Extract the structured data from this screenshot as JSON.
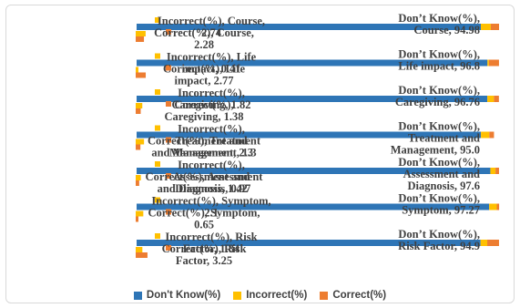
{
  "chart_data": {
    "type": "bar",
    "orientation": "horizontal",
    "stacked": true,
    "categories": [
      "Risk Factor",
      "Symptom",
      "Assessment and Diagnosis",
      "Treatment and Management",
      "Caregiving",
      "Life impact",
      "Course"
    ],
    "series": [
      {
        "name": "Don't Know(%)",
        "color": "#2e75b6",
        "values": [
          94.9,
          97.27,
          97.6,
          95.0,
          96.76,
          96.8,
          94.98
        ]
      },
      {
        "name": "Incorrect(%)",
        "color": "#ffc000",
        "values": [
          1.84,
          2.1,
          1.42,
          2.3,
          1.82,
          0.41,
          2.74
        ]
      },
      {
        "name": "Correct(%)",
        "color": "#ed7d31",
        "values": [
          3.25,
          0.65,
          0.97,
          1.3,
          1.38,
          2.77,
          2.28
        ]
      }
    ],
    "data_labels": [
      {
        "category": "Risk Factor",
        "dont_know": "Don’t Know(%), Risk Factor, 94.9",
        "incorrect": "Incorrect(%), Risk Factor, 1.84",
        "correct": "Correct(%), Risk Factor, 3.25"
      },
      {
        "category": "Symptom",
        "dont_know": "Don’t Know(%), Symptom, 97.27",
        "incorrect": "Incorrect(%), Symptom, 2.1",
        "correct": "Correct(%), Symptom, 0.65"
      },
      {
        "category": "Assessment and Diagnosis",
        "dont_know": "Don’t Know(%), Assessment and Diagnosis, 97.6",
        "incorrect": "Incorrect(%), Assessment and Diagnosis, 1.42",
        "correct": "Correct(%), Assessment and Diagnosis, 0.97"
      },
      {
        "category": "Treatment and Management",
        "dont_know": "Don’t Know(%), Treatment and Management, 95.0",
        "incorrect": "Incorrect(%), Treatment and Management, 2.3",
        "correct": "Correct(%), Treatment and Management, 1.3"
      },
      {
        "category": "Caregiving",
        "dont_know": "Don’t Know(%), Caregiving, 96.76",
        "incorrect": "Incorrect(%), Caregiving, 1.82",
        "correct": "Correct(%), Caregiving, 1.38"
      },
      {
        "category": "Life impact",
        "dont_know": "Don’t Know(%), Life impact, 96.8",
        "incorrect": "Incorrect(%), Life impact, 0.41",
        "correct": "Correct(%), Life impact, 2.77"
      },
      {
        "category": "Course",
        "dont_know": "Don’t Know(%), Course, 94.98",
        "incorrect": "Incorrect(%), Course, 2.74",
        "correct": "Correct(%), Course, 2.28"
      }
    ],
    "xlim": [
      0,
      100
    ],
    "grid": false,
    "legend_position": "bottom",
    "title": "",
    "xlabel": "",
    "ylabel": ""
  },
  "legend": {
    "items": [
      {
        "label": "Don't Know(%)",
        "color": "#2e75b6"
      },
      {
        "label": "Incorrect(%)",
        "color": "#ffc000"
      },
      {
        "label": "Correct(%)",
        "color": "#ed7d31"
      }
    ]
  }
}
